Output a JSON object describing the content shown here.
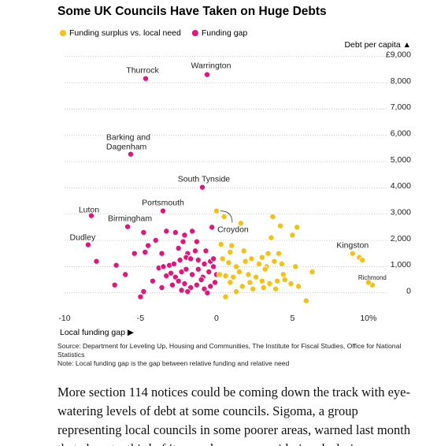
{
  "chart_data": {
    "type": "scatter",
    "title": "Some UK Councils Have Taken on Huge Debts",
    "x_label": "Local funding gap ▶",
    "y_label": "Debt per capita ▲",
    "xlim": [
      -10,
      11.2
    ],
    "ylim": [
      -550,
      9500
    ],
    "xticks": [
      -10,
      -5,
      0,
      5,
      {
        "value": 10,
        "label": "10%"
      }
    ],
    "yticks": [
      {
        "value": 9000,
        "label": "£9,000"
      },
      {
        "value": 8000,
        "label": "8,000"
      },
      {
        "value": 7000,
        "label": "7,000"
      },
      {
        "value": 6000,
        "label": "6,000"
      },
      {
        "value": 5000,
        "label": "5,000"
      },
      {
        "value": 4000,
        "label": "4,000"
      },
      {
        "value": 3000,
        "label": "3,000"
      },
      {
        "value": 2000,
        "label": "2,000"
      },
      {
        "value": 1000,
        "label": "1,000"
      },
      0
    ],
    "grid": true,
    "series": [
      {
        "name": "Funding surplus vs. local need",
        "color": "#f5c20f",
        "x": [
          0,
          8.96,
          10.26,
          0.5,
          1.6,
          3.7,
          4.2,
          5.3,
          3.6,
          5.0,
          0.3,
          1.0,
          1.8,
          3.4,
          4.1,
          3.0,
          9.4,
          0.4,
          0.8,
          1.3,
          1.9,
          2.3,
          2.8,
          3.3,
          3.8,
          4.3,
          5.2,
          6.3,
          0.2,
          0.6,
          1.1,
          1.5,
          2.1,
          2.6,
          3.0,
          3.5,
          4.0,
          4.5,
          4.9,
          5.4,
          0.9,
          1.7,
          2.4,
          3.1,
          3.9,
          0.6,
          1.3,
          5.9,
          4.4,
          0.9,
          10.0,
          9.6,
          3.2,
          2.2
        ],
        "values": [
          3120,
          1500,
          300,
          2900,
          2650,
          2900,
          2550,
          2500,
          2100,
          2200,
          1850,
          1800,
          1600,
          1500,
          1500,
          1350,
          1350,
          1300,
          1150,
          1000,
          1200,
          1300,
          1100,
          1000,
          1200,
          1100,
          1000,
          800,
          700,
          650,
          600,
          800,
          700,
          600,
          450,
          350,
          450,
          500,
          350,
          250,
          400,
          250,
          150,
          200,
          150,
          -150,
          50,
          -300,
          700,
          1550,
          400,
          1250,
          900,
          400
        ],
        "point_labels": [
          "Croydon",
          "Kingston",
          "Richmond",
          null,
          null,
          null,
          null,
          null,
          null,
          null,
          null,
          null,
          null,
          null,
          null,
          null,
          null,
          null,
          null,
          null,
          null,
          null,
          null,
          null,
          null,
          null,
          null,
          null,
          null,
          null,
          null,
          null,
          null,
          null,
          null,
          null,
          null,
          null,
          null,
          null,
          null,
          null,
          null,
          null,
          null,
          null,
          null,
          null,
          null,
          null,
          null,
          null,
          null,
          null
        ]
      },
      {
        "name": "Funding gap",
        "color": "#e4147f",
        "x": [
          -4.66,
          -0.62,
          -5.65,
          -0.93,
          -3.52,
          -8.24,
          -5.85,
          -8.45,
          -7.9,
          -6.6,
          -6.0,
          -5.4,
          -4.5,
          -4.8,
          -4.0,
          -3.3,
          -2.7,
          -2.1,
          -1.6,
          -2.2,
          -1.3,
          -0.7,
          -4.7,
          -3.6,
          -2.5,
          -1.9,
          -0.3,
          -6.7,
          -5.0,
          -4.8,
          -3.8,
          -3.5,
          -3.1,
          -2.8,
          -2.4,
          -2.0,
          -1.7,
          -1.2,
          -0.8,
          -0.4,
          -3.3,
          -3.0,
          -2.7,
          -2.3,
          -2.0,
          -1.6,
          -1.2,
          -0.9,
          -0.5,
          -0.2,
          -2.9,
          -2.5,
          -2.1,
          -1.7,
          -1.3,
          -0.8,
          -0.4,
          -0.1,
          -3.6,
          -1.9,
          -0.6,
          -4.2,
          -1.0,
          -2.3,
          -1.4,
          -0.2,
          0.0
        ],
        "values": [
          8160,
          8310,
          5280,
          4020,
          3120,
          2940,
          2520,
          1830,
          1200,
          1050,
          700,
          1500,
          1800,
          2300,
          2000,
          2350,
          2300,
          2200,
          2350,
          1950,
          1950,
          1600,
          1550,
          1500,
          1700,
          1500,
          2500,
          300,
          -150,
          50,
          950,
          1000,
          1050,
          1100,
          1250,
          1350,
          1300,
          1250,
          1100,
          1200,
          650,
          750,
          600,
          800,
          900,
          700,
          900,
          600,
          800,
          1000,
          300,
          450,
          350,
          200,
          300,
          150,
          250,
          400,
          200,
          50,
          0,
          450,
          500,
          100,
          1600,
          1300,
          700
        ],
        "point_labels": [
          "Thurrock",
          "Warrington",
          "Barking and Dagenham",
          "South Tynside",
          "Portsmouth",
          "Luton",
          "Birmingham",
          "Dudley",
          null,
          null,
          null,
          null,
          null,
          null,
          null,
          null,
          null,
          null,
          null,
          null,
          null,
          null,
          null,
          null,
          null,
          null,
          null,
          null,
          null,
          null,
          null,
          null,
          null,
          null,
          null,
          null,
          null,
          null,
          null,
          null,
          null,
          null,
          null,
          null,
          null,
          null,
          null,
          null,
          null,
          null,
          null,
          null,
          null,
          null,
          null,
          null,
          null,
          null,
          null,
          null,
          null,
          null,
          null,
          null,
          null,
          null,
          null
        ]
      }
    ],
    "source": "Source: Department for Leveling Up, Housing and Communities, The Institute for Fiscal Studies, Office for National Statistics",
    "note": "Note: Local funding gap is the gap between relative funding and relative need"
  },
  "article": {
    "paragraph": "More section 114 notices could be coming down the track with eye-watering levels of debt at some councils. Sigoma, a group representing local councils in some poorer areas, warned last month that almost a third of its members are considering declaring"
  }
}
